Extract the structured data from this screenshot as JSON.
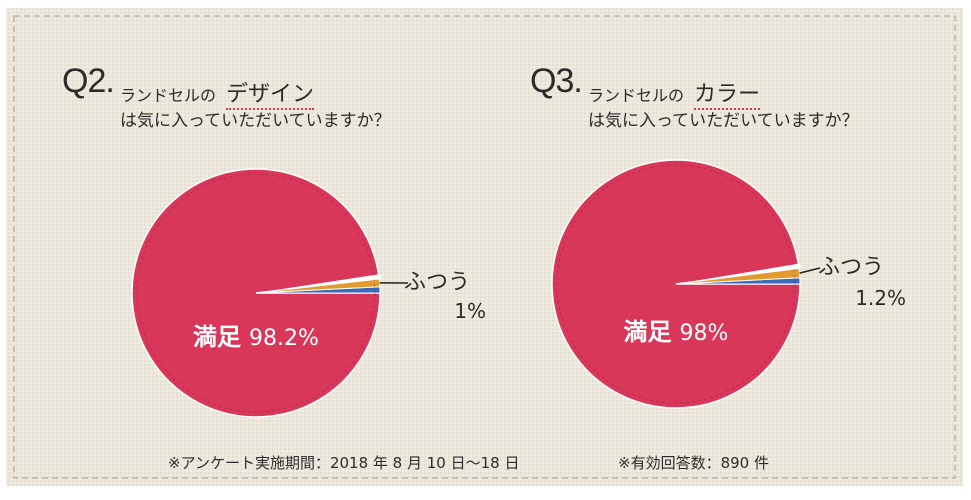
{
  "chart_data": [
    {
      "type": "pie",
      "question_number": "Q2.",
      "question_prefix": "ランドセルの",
      "question_keyword": "デザイン",
      "question_line2": "は気に入っていただいていますか？",
      "slices": [
        {
          "label": "満足",
          "value_label": "98.2%",
          "value": 98.2,
          "color": "#d9375a"
        },
        {
          "label": "ふつう",
          "value_label": "1%",
          "value": 1.0,
          "color": "#e39a2d"
        },
        {
          "label": "",
          "value_label": "",
          "value": 0.8,
          "color": "#3a6ab8"
        }
      ]
    },
    {
      "type": "pie",
      "question_number": "Q3.",
      "question_prefix": "ランドセルの",
      "question_keyword": "カラー",
      "question_line2": "は気に入っていただいていますか？",
      "slices": [
        {
          "label": "満足",
          "value_label": "98%",
          "value": 98.0,
          "color": "#d9375a"
        },
        {
          "label": "ふつう",
          "value_label": "1.2%",
          "value": 1.2,
          "color": "#e39a2d"
        },
        {
          "label": "",
          "value_label": "",
          "value": 0.8,
          "color": "#3a6ab8"
        }
      ]
    }
  ],
  "footer": {
    "survey_period": "※アンケート実施期間：2018 年 8 月 10 日〜18 日",
    "responses": "※有効回答数：890 件"
  },
  "colors": {
    "background": "#ece7dc",
    "border_stitch": "#9a9286",
    "stitch": "#8a2035"
  }
}
